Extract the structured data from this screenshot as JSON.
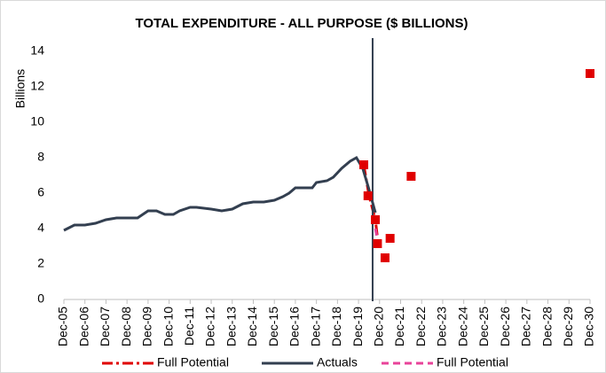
{
  "chart_data": {
    "type": "line",
    "title": "TOTAL EXPENDITURE - ALL PURPOSE ($ BILLIONS)",
    "y_label": "Billions",
    "xlim": [
      2005,
      2030
    ],
    "xticks": [
      {
        "value": 2005,
        "label": "Dec-05"
      },
      {
        "value": 2006,
        "label": "Dec-06"
      },
      {
        "value": 2007,
        "label": "Dec-07"
      },
      {
        "value": 2008,
        "label": "Dec-08"
      },
      {
        "value": 2009,
        "label": "Dec-09"
      },
      {
        "value": 2010,
        "label": "Dec-10"
      },
      {
        "value": 2011,
        "label": "Dec-11"
      },
      {
        "value": 2012,
        "label": "Dec-12"
      },
      {
        "value": 2013,
        "label": "Dec-13"
      },
      {
        "value": 2014,
        "label": "Dec-14"
      },
      {
        "value": 2015,
        "label": "Dec-15"
      },
      {
        "value": 2016,
        "label": "Dec-16"
      },
      {
        "value": 2017,
        "label": "Dec-17"
      },
      {
        "value": 2018,
        "label": "Dec-18"
      },
      {
        "value": 2019,
        "label": "Dec-19"
      },
      {
        "value": 2020,
        "label": "Dec-20"
      },
      {
        "value": 2021,
        "label": "Dec-21"
      },
      {
        "value": 2022,
        "label": "Dec-22"
      },
      {
        "value": 2023,
        "label": "Dec-23"
      },
      {
        "value": 2024,
        "label": "Dec-24"
      },
      {
        "value": 2025,
        "label": "Dec-25"
      },
      {
        "value": 2026,
        "label": "Dec-26"
      },
      {
        "value": 2027,
        "label": "Dec-27"
      },
      {
        "value": 2028,
        "label": "Dec-28"
      },
      {
        "value": 2029,
        "label": "Dec-29"
      },
      {
        "value": 2030,
        "label": "Dec-30"
      }
    ],
    "ylim": [
      0,
      14
    ],
    "yticks": [
      0,
      2,
      4,
      6,
      8,
      10,
      12,
      14
    ],
    "series": [
      {
        "name": "Full Potential",
        "color": "#e00000",
        "style": "dashdot",
        "x": [
          2019.25,
          2019.5,
          2019.8,
          2019.9
        ],
        "values": [
          7.6,
          5.85,
          4.5,
          3.5
        ]
      },
      {
        "name": "Actuals",
        "color": "#333f50",
        "style": "solid",
        "x": [
          2005,
          2005.5,
          2006,
          2006.5,
          2007,
          2007.5,
          2008,
          2008.5,
          2009,
          2009.4,
          2009.8,
          2010.2,
          2010.5,
          2011,
          2011.3,
          2012,
          2012.5,
          2013,
          2013.5,
          2014,
          2014.5,
          2015,
          2015.4,
          2015.7,
          2016,
          2016.5,
          2016.8,
          2017,
          2017.5,
          2017.8,
          2018.2,
          2018.6,
          2018.9,
          2019.2,
          2019.5,
          2019.8
        ],
        "values": [
          3.9,
          4.2,
          4.2,
          4.3,
          4.5,
          4.6,
          4.6,
          4.6,
          5.0,
          5.0,
          4.8,
          4.8,
          5.0,
          5.2,
          5.2,
          5.1,
          5.0,
          5.1,
          5.4,
          5.5,
          5.5,
          5.6,
          5.8,
          6.0,
          6.3,
          6.3,
          6.3,
          6.6,
          6.7,
          6.9,
          7.4,
          7.8,
          8.0,
          7.4,
          6.2,
          4.9
        ]
      },
      {
        "name": "Full Potential",
        "color": "#e8439a",
        "style": "dash",
        "x": [
          2019.8,
          2019.95
        ],
        "values": [
          4.0,
          3.1
        ]
      }
    ],
    "markers": {
      "color": "#e00000",
      "x": [
        2019.25,
        2019.45,
        2019.8,
        2019.9,
        2020.26,
        2020.5,
        2021.5,
        2030
      ],
      "values": [
        7.6,
        5.85,
        4.5,
        3.15,
        2.35,
        3.45,
        6.95,
        12.75
      ]
    },
    "vline_x": 2019.67,
    "legend": "bottom"
  }
}
